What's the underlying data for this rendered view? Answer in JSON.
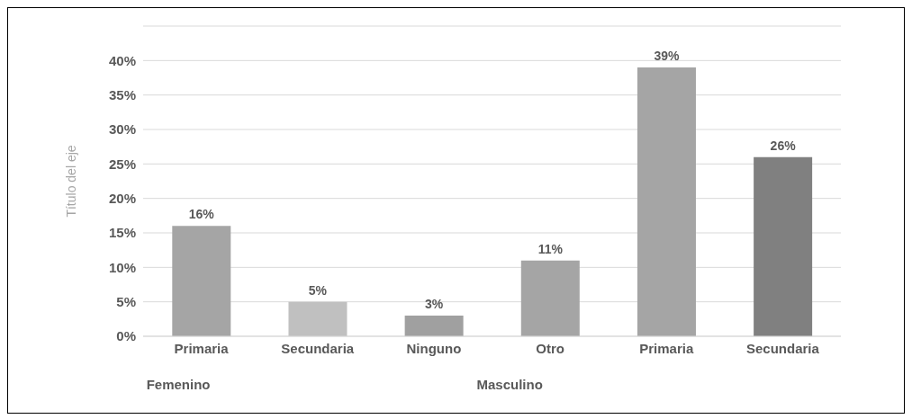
{
  "chart_data": {
    "type": "bar",
    "ylabel": "Título del eje",
    "categories": [
      "Primaria",
      "Secundaria",
      "Ninguno",
      "Otro",
      "Primaria",
      "Secundaria"
    ],
    "values": [
      16,
      5,
      3,
      11,
      39,
      26
    ],
    "value_labels": [
      "16%",
      "5%",
      "3%",
      "11%",
      "39%",
      "26%"
    ],
    "colors": [
      "#a5a5a5",
      "#c0c0c0",
      "#a0a0a0",
      "#a5a5a5",
      "#a5a5a5",
      "#808080"
    ],
    "ylim": [
      0,
      45
    ],
    "yticks": [
      {
        "value": 0,
        "label": "0%"
      },
      {
        "value": 5,
        "label": "5%"
      },
      {
        "value": 10,
        "label": "10%"
      },
      {
        "value": 15,
        "label": "15%"
      },
      {
        "value": 20,
        "label": "20%"
      },
      {
        "value": 25,
        "label": "25%"
      },
      {
        "value": 30,
        "label": "30%"
      },
      {
        "value": 35,
        "label": "35%"
      },
      {
        "value": 40,
        "label": "40%"
      },
      {
        "value": 45,
        "label": null
      }
    ],
    "grid": "y",
    "annotations": [
      "Femenino",
      "Masculino"
    ]
  }
}
